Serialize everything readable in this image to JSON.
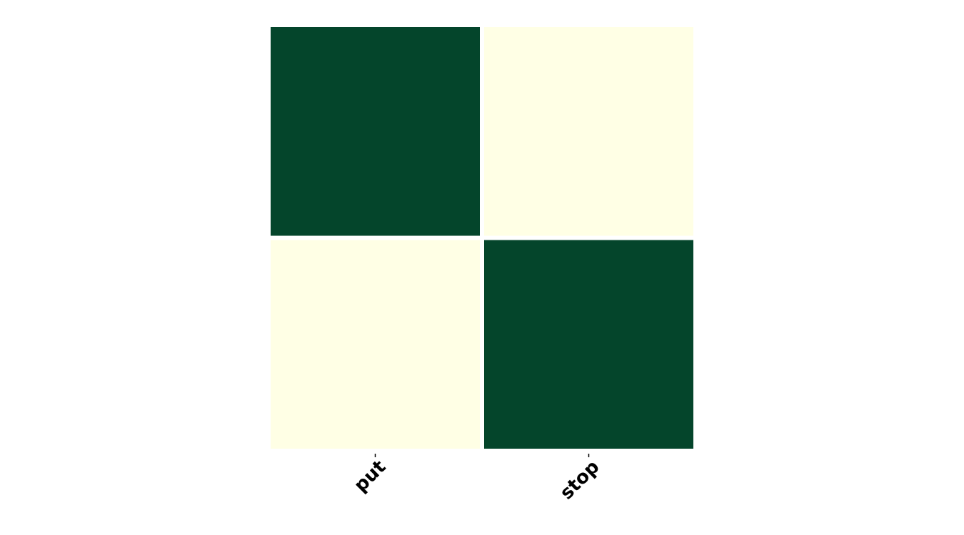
{
  "chart_data": {
    "type": "heatmap",
    "x_categories": [
      "put",
      "stop"
    ],
    "y_categories": [
      "",
      ""
    ],
    "matrix": [
      [
        1,
        0
      ],
      [
        0,
        1
      ]
    ],
    "colorscale": {
      "low": "#ffffe5",
      "high": "#04452b"
    },
    "colorbar": false,
    "grid": false
  }
}
